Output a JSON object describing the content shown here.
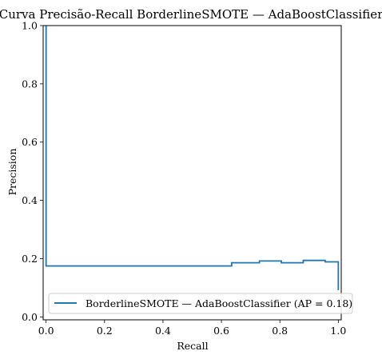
{
  "chart_data": {
    "type": "line",
    "drawstyle": "steps-post",
    "title": "Curva Precisão-Recall BorderlineSMOTE — AdaBoostClassifier",
    "xlabel": "Recall",
    "ylabel": "Precision",
    "xlim": [
      -0.01,
      1.01
    ],
    "ylim": [
      -0.01,
      1.0
    ],
    "xticks": [
      0.0,
      0.2,
      0.4,
      0.6,
      0.8,
      1.0
    ],
    "xtick_labels": [
      "0.0",
      "0.2",
      "0.4",
      "0.6",
      "0.8",
      "1.0"
    ],
    "yticks": [
      0.0,
      0.2,
      0.4,
      0.6,
      0.8,
      1.0
    ],
    "ytick_labels": [
      "0.0",
      "0.2",
      "0.4",
      "0.6",
      "0.8",
      "1.0"
    ],
    "grid": false,
    "legend": {
      "position": "lower-right",
      "entries": [
        "BorderlineSMOTE — AdaBoostClassifier (AP = 0.18)"
      ]
    },
    "series": [
      {
        "name": "BorderlineSMOTE — AdaBoostClassifier (AP = 0.18)",
        "color": "#1f77b4",
        "recall": [
          0.0,
          0.0,
          0.635,
          0.635,
          0.73,
          0.73,
          0.805,
          0.805,
          0.88,
          0.88,
          0.955,
          0.955,
          1.0,
          1.0
        ],
        "precision": [
          1.0,
          0.175,
          0.175,
          0.186,
          0.186,
          0.192,
          0.192,
          0.186,
          0.186,
          0.194,
          0.194,
          0.189,
          0.189,
          0.092
        ]
      }
    ]
  }
}
